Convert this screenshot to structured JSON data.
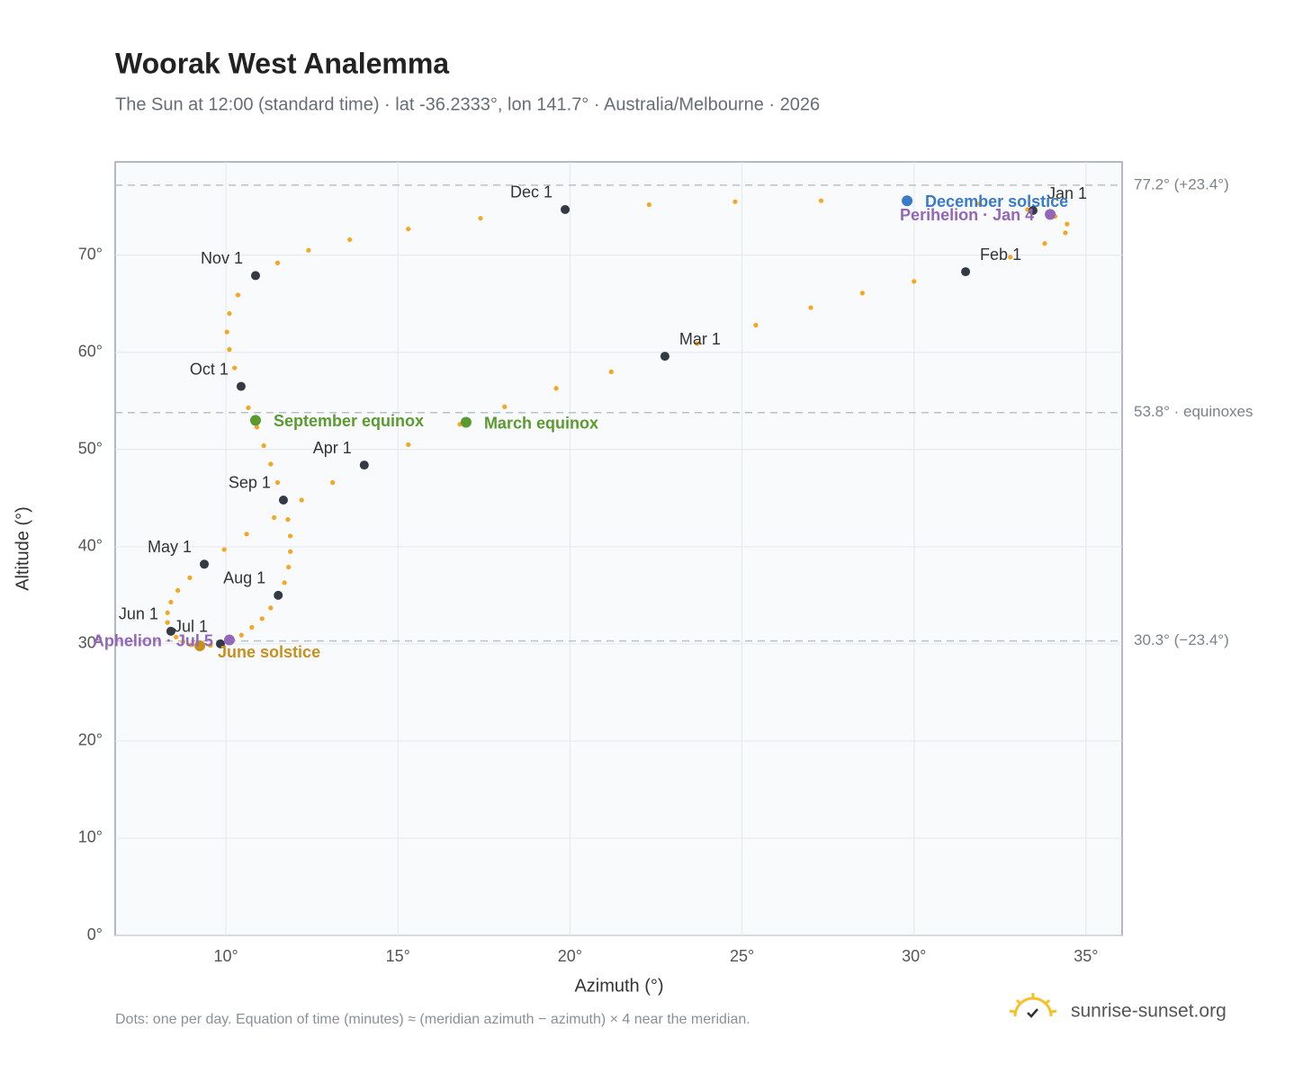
{
  "chart_data": {
    "type": "scatter",
    "title": "Woorak West Analemma",
    "subtitle": "The Sun at 12:00 (standard time) · lat -36.2333°, lon 141.7° · Australia/Melbourne · 2026",
    "x_label": "Azimuth (°)",
    "y_label": "Altitude (°)",
    "xlim": [
      6.78,
      36.05
    ],
    "ylim": [
      0,
      79.6
    ],
    "xticks": [
      {
        "value": 10,
        "label": "10°"
      },
      {
        "value": 15,
        "label": "15°"
      },
      {
        "value": 20,
        "label": "20°"
      },
      {
        "value": 25,
        "label": "25°"
      },
      {
        "value": 30,
        "label": "30°"
      },
      {
        "value": 35,
        "label": "35°"
      }
    ],
    "yticks": [
      {
        "value": 0,
        "label": "0°"
      },
      {
        "value": 10,
        "label": "10°"
      },
      {
        "value": 20,
        "label": "20°"
      },
      {
        "value": 30,
        "label": "30°"
      },
      {
        "value": 40,
        "label": "40°"
      },
      {
        "value": 50,
        "label": "50°"
      },
      {
        "value": 60,
        "label": "60°"
      },
      {
        "value": 70,
        "label": "70°"
      }
    ],
    "grid": true,
    "path": {
      "color": "#f5a623",
      "x": [
        33.46,
        34.1,
        34.45,
        34.4,
        33.8,
        32.8,
        31.5,
        30.0,
        28.5,
        27.0,
        25.4,
        23.7,
        22.76,
        21.2,
        19.6,
        18.1,
        16.8,
        15.3,
        14.02,
        13.1,
        12.2,
        11.4,
        10.6,
        9.95,
        9.37,
        8.95,
        8.6,
        8.4,
        8.3,
        8.3,
        8.4,
        8.55,
        8.75,
        8.98,
        9.24,
        9.55,
        9.84,
        10.15,
        10.45,
        10.75,
        11.05,
        11.3,
        11.52,
        11.7,
        11.82,
        11.87,
        11.87,
        11.8,
        11.67,
        11.5,
        11.3,
        11.1,
        10.9,
        10.65,
        10.44,
        10.25,
        10.1,
        10.03,
        10.1,
        10.35,
        10.86,
        11.5,
        12.4,
        13.6,
        15.3,
        17.4,
        19.86,
        22.3,
        24.8,
        27.3,
        29.8,
        31.9,
        33.3
      ],
      "y": [
        74.6,
        74.0,
        73.2,
        72.3,
        71.2,
        69.8,
        68.3,
        67.3,
        66.1,
        64.6,
        62.8,
        60.9,
        59.6,
        58.0,
        56.3,
        54.4,
        52.6,
        50.5,
        48.4,
        46.6,
        44.8,
        43.0,
        41.3,
        39.7,
        38.2,
        36.8,
        35.5,
        34.3,
        33.2,
        32.2,
        31.3,
        30.7,
        30.2,
        29.9,
        29.8,
        29.85,
        30.0,
        30.4,
        30.9,
        31.7,
        32.6,
        33.7,
        35.0,
        36.3,
        37.9,
        39.5,
        41.1,
        42.8,
        44.8,
        46.6,
        48.5,
        50.4,
        52.3,
        54.3,
        56.5,
        58.4,
        60.3,
        62.1,
        64.0,
        65.9,
        67.9,
        69.2,
        70.5,
        71.6,
        72.7,
        73.8,
        74.7,
        75.2,
        75.5,
        75.6,
        75.6,
        75.3,
        74.7
      ]
    },
    "markers": {
      "color": "#343a45",
      "points": [
        {
          "label": "Jan 1",
          "x": 33.46,
          "y": 74.6
        },
        {
          "label": "Feb 1",
          "x": 31.5,
          "y": 68.3
        },
        {
          "label": "Mar 1",
          "x": 22.76,
          "y": 59.6
        },
        {
          "label": "Apr 1",
          "x": 14.02,
          "y": 48.4
        },
        {
          "label": "May 1",
          "x": 9.37,
          "y": 38.2
        },
        {
          "label": "Jun 1",
          "x": 8.4,
          "y": 31.3
        },
        {
          "label": "Jul 1",
          "x": 9.84,
          "y": 30.0
        },
        {
          "label": "Aug 1",
          "x": 11.52,
          "y": 35.0
        },
        {
          "label": "Sep 1",
          "x": 11.67,
          "y": 44.8
        },
        {
          "label": "Oct 1",
          "x": 10.44,
          "y": 56.5
        },
        {
          "label": "Nov 1",
          "x": 10.86,
          "y": 67.9
        },
        {
          "label": "Dec 1",
          "x": 19.86,
          "y": 74.7
        }
      ]
    },
    "events": [
      {
        "label": "December solstice",
        "x": 29.8,
        "y": 75.6,
        "color": "#3a7bc8"
      },
      {
        "label": "Perihelion · Jan 4",
        "x": 33.96,
        "y": 74.2,
        "color": "#9466b8"
      },
      {
        "label": "March equinox",
        "x": 16.98,
        "y": 52.8,
        "color": "#5a9a2e"
      },
      {
        "label": "September equinox",
        "x": 10.86,
        "y": 53.0,
        "color": "#5a9a2e"
      },
      {
        "label": "June solstice",
        "x": 9.24,
        "y": 29.8,
        "color": "#c8901a"
      },
      {
        "label": "Aphelion · Jul 5",
        "x": 10.1,
        "y": 30.4,
        "color": "#9466b8"
      }
    ],
    "reference_lines": [
      {
        "value": 77.2,
        "label": "77.2° (+23.4°)"
      },
      {
        "value": 53.8,
        "label": "53.8° · equinoxes"
      },
      {
        "value": 30.3,
        "label": "30.3° (−23.4°)"
      }
    ],
    "footnote": "Dots: one per day. Equation of time (minutes) ≈ (meridian azimuth − azimuth) × 4 near the meridian.",
    "brand": "sunrise-sunset.org"
  }
}
